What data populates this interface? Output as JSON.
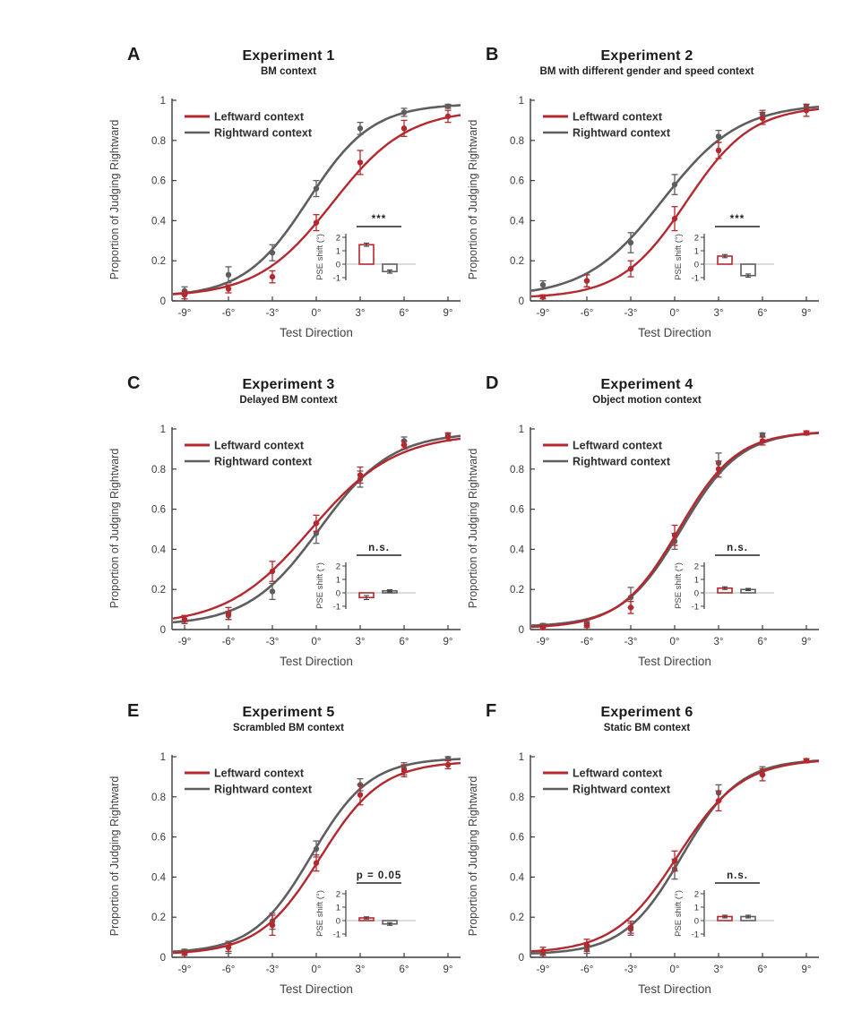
{
  "figure": {
    "background": "#ffffff",
    "accent_red": "#b4282e",
    "accent_gray": "#5e5e5e"
  },
  "chart_data": [
    {
      "panel": "A",
      "title": "Experiment 1",
      "subtitle": "BM context",
      "type": "line",
      "xlabel": "Test Direction",
      "ylabel": "Proportion of Judging Rightward",
      "x": [
        -9,
        -6,
        -3,
        0,
        3,
        6,
        9
      ],
      "x_tick_labels": [
        "-9°",
        "-6°",
        "-3°",
        "0°",
        "3°",
        "6°",
        "9°"
      ],
      "ylim": [
        0,
        1
      ],
      "yticks": [
        0,
        0.2,
        0.4,
        0.6,
        0.8,
        1
      ],
      "ytick_labels": [
        "0",
        "0.2",
        "0.4",
        "0.6",
        "0.8",
        "1"
      ],
      "legend_position": "top-left",
      "grid": false,
      "series": [
        {
          "name": "Leftward context",
          "color": "#b4282e",
          "values": [
            0.03,
            0.06,
            0.12,
            0.39,
            0.69,
            0.86,
            0.92
          ],
          "errors": [
            0.02,
            0.02,
            0.03,
            0.04,
            0.06,
            0.04,
            0.03
          ]
        },
        {
          "name": "Rightward context",
          "color": "#5e5e5e",
          "values": [
            0.05,
            0.13,
            0.24,
            0.56,
            0.86,
            0.94,
            0.97
          ],
          "errors": [
            0.02,
            0.04,
            0.04,
            0.04,
            0.03,
            0.02,
            0.01
          ]
        }
      ],
      "inset": {
        "ylabel": "PSE shift (°)",
        "ylim": [
          -1,
          2
        ],
        "yticks": [
          2,
          1,
          0,
          -1
        ],
        "significance": "***",
        "bars": [
          {
            "name": "Leftward context",
            "value": 1.45,
            "error": 0.12,
            "color": "#b4282e"
          },
          {
            "name": "Rightward context",
            "value": -0.55,
            "error": 0.12,
            "color": "#5e5e5e"
          }
        ]
      }
    },
    {
      "panel": "B",
      "title": "Experiment 2",
      "subtitle": "BM with different gender and speed context",
      "type": "line",
      "xlabel": "Test Direction",
      "ylabel": "Proportion of Judging Rightward",
      "x": [
        -9,
        -6,
        -3,
        0,
        3,
        6,
        9
      ],
      "x_tick_labels": [
        "-9°",
        "-6°",
        "-3°",
        "0°",
        "3°",
        "6°",
        "9°"
      ],
      "ylim": [
        0,
        1
      ],
      "yticks": [
        0,
        0.2,
        0.4,
        0.6,
        0.8,
        1
      ],
      "ytick_labels": [
        "0",
        "0.2",
        "0.4",
        "0.6",
        "0.8",
        "1"
      ],
      "legend_position": "top-left",
      "grid": false,
      "series": [
        {
          "name": "Leftward context",
          "color": "#b4282e",
          "values": [
            0.02,
            0.1,
            0.16,
            0.41,
            0.75,
            0.91,
            0.95
          ],
          "errors": [
            0.01,
            0.03,
            0.04,
            0.06,
            0.04,
            0.03,
            0.03
          ]
        },
        {
          "name": "Rightward context",
          "color": "#5e5e5e",
          "values": [
            0.08,
            0.1,
            0.29,
            0.58,
            0.82,
            0.93,
            0.97
          ],
          "errors": [
            0.02,
            0.03,
            0.05,
            0.05,
            0.03,
            0.02,
            0.01
          ]
        }
      ],
      "inset": {
        "ylabel": "PSE shift (°)",
        "ylim": [
          -1,
          2
        ],
        "yticks": [
          2,
          1,
          0,
          -1
        ],
        "significance": "***",
        "bars": [
          {
            "name": "Leftward context",
            "value": 0.6,
            "error": 0.12,
            "color": "#b4282e"
          },
          {
            "name": "Rightward context",
            "value": -0.85,
            "error": 0.12,
            "color": "#5e5e5e"
          }
        ]
      }
    },
    {
      "panel": "C",
      "title": "Experiment 3",
      "subtitle": "Delayed BM context",
      "type": "line",
      "xlabel": "Test Direction",
      "ylabel": "Proportion of Judging Rightward",
      "x": [
        -9,
        -6,
        -3,
        0,
        3,
        6,
        9
      ],
      "x_tick_labels": [
        "-9°",
        "-6°",
        "-3°",
        "0°",
        "3°",
        "6°",
        "9°"
      ],
      "ylim": [
        0,
        1
      ],
      "yticks": [
        0,
        0.2,
        0.4,
        0.6,
        0.8,
        1
      ],
      "ytick_labels": [
        "0",
        "0.2",
        "0.4",
        "0.6",
        "0.8",
        "1"
      ],
      "legend_position": "top-left",
      "grid": false,
      "series": [
        {
          "name": "Leftward context",
          "color": "#b4282e",
          "values": [
            0.05,
            0.08,
            0.29,
            0.53,
            0.77,
            0.92,
            0.96
          ],
          "errors": [
            0.02,
            0.03,
            0.05,
            0.04,
            0.04,
            0.02,
            0.02
          ]
        },
        {
          "name": "Rightward context",
          "color": "#5e5e5e",
          "values": [
            0.05,
            0.07,
            0.19,
            0.48,
            0.75,
            0.94,
            0.97
          ],
          "errors": [
            0.02,
            0.02,
            0.04,
            0.05,
            0.04,
            0.02,
            0.01
          ]
        }
      ],
      "inset": {
        "ylabel": "PSE shift (°)",
        "ylim": [
          -1,
          2
        ],
        "yticks": [
          2,
          1,
          0,
          -1
        ],
        "significance": "n.s.",
        "bars": [
          {
            "name": "Leftward context",
            "value": -0.35,
            "error": 0.15,
            "color": "#b4282e"
          },
          {
            "name": "Rightward context",
            "value": 0.15,
            "error": 0.08,
            "color": "#5e5e5e"
          }
        ]
      }
    },
    {
      "panel": "D",
      "title": "Experiment 4",
      "subtitle": "Object motion context",
      "type": "line",
      "xlabel": "Test Direction",
      "ylabel": "Proportion of Judging Rightward",
      "x": [
        -9,
        -6,
        -3,
        0,
        3,
        6,
        9
      ],
      "x_tick_labels": [
        "-9°",
        "-6°",
        "-3°",
        "0°",
        "3°",
        "6°",
        "9°"
      ],
      "ylim": [
        0,
        1
      ],
      "yticks": [
        0,
        0.2,
        0.4,
        0.6,
        0.8,
        1
      ],
      "ytick_labels": [
        "0",
        "0.2",
        "0.4",
        "0.6",
        "0.8",
        "1"
      ],
      "legend_position": "top-left",
      "grid": false,
      "series": [
        {
          "name": "Leftward context",
          "color": "#b4282e",
          "values": [
            0.01,
            0.02,
            0.11,
            0.47,
            0.8,
            0.94,
            0.98
          ],
          "errors": [
            0.01,
            0.01,
            0.03,
            0.05,
            0.04,
            0.02,
            0.01
          ]
        },
        {
          "name": "Rightward context",
          "color": "#5e5e5e",
          "values": [
            0.02,
            0.03,
            0.16,
            0.44,
            0.83,
            0.97,
            0.98
          ],
          "errors": [
            0.01,
            0.01,
            0.05,
            0.04,
            0.05,
            0.01,
            0.01
          ]
        }
      ],
      "inset": {
        "ylabel": "PSE shift (°)",
        "ylim": [
          -1,
          2
        ],
        "yticks": [
          2,
          1,
          0,
          -1
        ],
        "significance": "n.s.",
        "bars": [
          {
            "name": "Leftward context",
            "value": 0.35,
            "error": 0.1,
            "color": "#b4282e"
          },
          {
            "name": "Rightward context",
            "value": 0.25,
            "error": 0.08,
            "color": "#5e5e5e"
          }
        ]
      }
    },
    {
      "panel": "E",
      "title": "Experiment 5",
      "subtitle": "Scrambled BM context",
      "type": "line",
      "xlabel": "Test Direction",
      "ylabel": "Proportion of Judging Rightward",
      "x": [
        -9,
        -6,
        -3,
        0,
        3,
        6,
        9
      ],
      "x_tick_labels": [
        "-9°",
        "-6°",
        "-3°",
        "0°",
        "3°",
        "6°",
        "9°"
      ],
      "ylim": [
        0,
        1
      ],
      "yticks": [
        0,
        0.2,
        0.4,
        0.6,
        0.8,
        1
      ],
      "ytick_labels": [
        "0",
        "0.2",
        "0.4",
        "0.6",
        "0.8",
        "1"
      ],
      "legend_position": "top-left",
      "grid": false,
      "series": [
        {
          "name": "Leftward context",
          "color": "#b4282e",
          "values": [
            0.02,
            0.05,
            0.16,
            0.47,
            0.81,
            0.93,
            0.96
          ],
          "errors": [
            0.01,
            0.02,
            0.05,
            0.04,
            0.05,
            0.03,
            0.02
          ]
        },
        {
          "name": "Rightward context",
          "color": "#5e5e5e",
          "values": [
            0.03,
            0.05,
            0.18,
            0.54,
            0.86,
            0.94,
            0.99
          ],
          "errors": [
            0.01,
            0.03,
            0.04,
            0.04,
            0.03,
            0.03,
            0.01
          ]
        }
      ],
      "inset": {
        "ylabel": "PSE shift (°)",
        "ylim": [
          -1,
          2
        ],
        "yticks": [
          2,
          1,
          0,
          -1
        ],
        "significance": "p = 0.05",
        "bars": [
          {
            "name": "Leftward context",
            "value": 0.2,
            "error": 0.08,
            "color": "#b4282e"
          },
          {
            "name": "Rightward context",
            "value": -0.25,
            "error": 0.1,
            "color": "#5e5e5e"
          }
        ]
      }
    },
    {
      "panel": "F",
      "title": "Experiment 6",
      "subtitle": "Static BM context",
      "type": "line",
      "xlabel": "Test Direction",
      "ylabel": "Proportion of Judging Rightward",
      "x": [
        -9,
        -6,
        -3,
        0,
        3,
        6,
        9
      ],
      "x_tick_labels": [
        "-9°",
        "-6°",
        "-3°",
        "0°",
        "3°",
        "6°",
        "9°"
      ],
      "ylim": [
        0,
        1
      ],
      "yticks": [
        0,
        0.2,
        0.4,
        0.6,
        0.8,
        1
      ],
      "ytick_labels": [
        "0",
        "0.2",
        "0.4",
        "0.6",
        "0.8",
        "1"
      ],
      "legend_position": "top-left",
      "grid": false,
      "series": [
        {
          "name": "Leftward context",
          "color": "#b4282e",
          "values": [
            0.03,
            0.06,
            0.15,
            0.48,
            0.78,
            0.91,
            0.98
          ],
          "errors": [
            0.02,
            0.03,
            0.03,
            0.05,
            0.05,
            0.03,
            0.01
          ]
        },
        {
          "name": "Rightward context",
          "color": "#5e5e5e",
          "values": [
            0.02,
            0.04,
            0.14,
            0.44,
            0.82,
            0.93,
            0.98
          ],
          "errors": [
            0.01,
            0.02,
            0.03,
            0.05,
            0.04,
            0.02,
            0.01
          ]
        }
      ],
      "inset": {
        "ylabel": "PSE shift (°)",
        "ylim": [
          -1,
          2
        ],
        "yticks": [
          2,
          1,
          0,
          -1
        ],
        "significance": "n.s.",
        "bars": [
          {
            "name": "Leftward context",
            "value": 0.3,
            "error": 0.1,
            "color": "#b4282e"
          },
          {
            "name": "Rightward context",
            "value": 0.3,
            "error": 0.1,
            "color": "#5e5e5e"
          }
        ]
      }
    }
  ]
}
